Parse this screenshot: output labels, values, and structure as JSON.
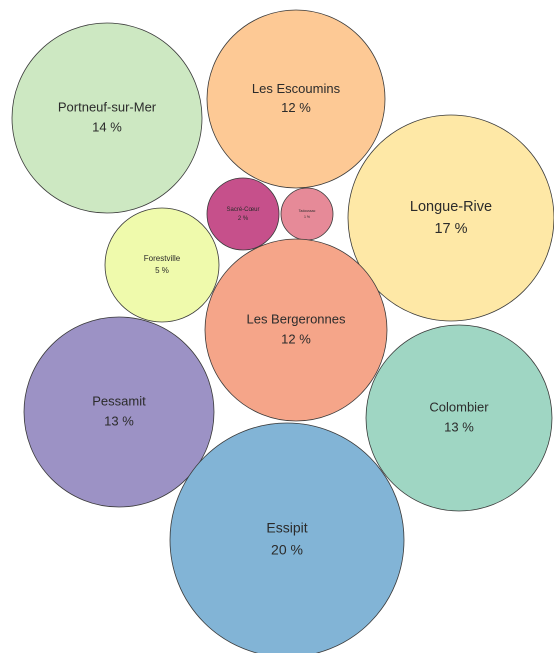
{
  "chart_data": {
    "type": "bubble",
    "title": "",
    "series": [
      {
        "name": "",
        "points": [
          {
            "label": "Portneuf-sur-Mer",
            "percent_label": "14 %",
            "value": 14,
            "color": "#cde8c2"
          },
          {
            "label": "Les Escoumins",
            "percent_label": "12 %",
            "value": 12,
            "color": "#fdc995"
          },
          {
            "label": "Longue-Rive",
            "percent_label": "17 %",
            "value": 17,
            "color": "#fee8a6"
          },
          {
            "label": "Sacré-Cœur",
            "percent_label": "2 %",
            "value": 2,
            "color": "#c6508b"
          },
          {
            "label": "Tadoussac",
            "percent_label": "1 %",
            "value": 1,
            "color": "#e68a98"
          },
          {
            "label": "Forestville",
            "percent_label": "5 %",
            "value": 5,
            "color": "#effaac"
          },
          {
            "label": "Les Bergeronnes",
            "percent_label": "12 %",
            "value": 12,
            "color": "#f5a589"
          },
          {
            "label": "Pessamit",
            "percent_label": "13 %",
            "value": 13,
            "color": "#9c92c5"
          },
          {
            "label": "Colombier",
            "percent_label": "13 %",
            "value": 13,
            "color": "#9fd6c3"
          },
          {
            "label": "Essipit",
            "percent_label": "20 %",
            "value": 20,
            "color": "#82b4d6"
          }
        ]
      }
    ]
  }
}
